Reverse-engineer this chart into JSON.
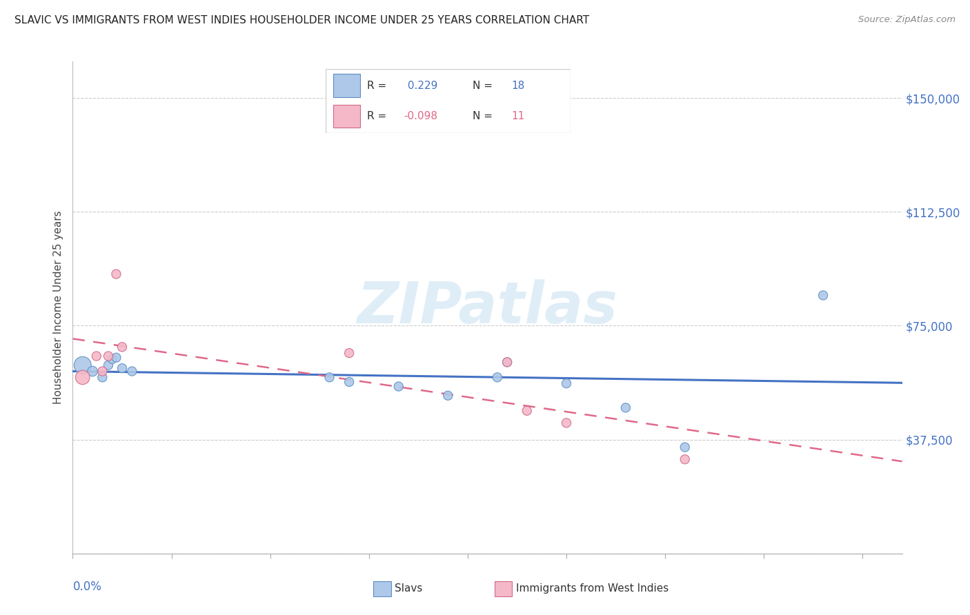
{
  "title": "SLAVIC VS IMMIGRANTS FROM WEST INDIES HOUSEHOLDER INCOME UNDER 25 YEARS CORRELATION CHART",
  "source": "Source: ZipAtlas.com",
  "ylabel": "Householder Income Under 25 years",
  "legend_label1": "Slavs",
  "legend_label2": "Immigrants from West Indies",
  "r1": 0.229,
  "n1": 18,
  "r2": -0.098,
  "n2": 11,
  "ylim": [
    0,
    162000
  ],
  "xlim": [
    0.0,
    0.042
  ],
  "blue_face": "#adc8e8",
  "blue_edge": "#5b8ec4",
  "blue_line": "#4472c4",
  "pink_face": "#f5b8c8",
  "pink_edge": "#d06888",
  "pink_line": "#e06888",
  "grid_color": "#cccccc",
  "title_color": "#222222",
  "right_tick_color": "#4472c4",
  "watermark_color": "#c5dff2",
  "slavs_x": [
    0.0005,
    0.001,
    0.0015,
    0.0018,
    0.002,
    0.0022,
    0.0025,
    0.003,
    0.013,
    0.014,
    0.0165,
    0.019,
    0.0215,
    0.022,
    0.025,
    0.028,
    0.031,
    0.038
  ],
  "slavs_y": [
    62000,
    60000,
    58000,
    62000,
    64000,
    64500,
    61000,
    60000,
    58000,
    56500,
    55000,
    52000,
    58000,
    63000,
    56000,
    48000,
    35000,
    85000
  ],
  "slavs_s": [
    320,
    110,
    90,
    90,
    90,
    90,
    90,
    90,
    90,
    90,
    90,
    90,
    90,
    90,
    90,
    90,
    90,
    90
  ],
  "wi_x": [
    0.0005,
    0.0012,
    0.0015,
    0.0018,
    0.0022,
    0.0025,
    0.014,
    0.022,
    0.023,
    0.025,
    0.031
  ],
  "wi_y": [
    58000,
    65000,
    60000,
    65000,
    92000,
    68000,
    66000,
    63000,
    47000,
    43000,
    31000
  ],
  "wi_s": [
    220,
    90,
    90,
    90,
    90,
    90,
    90,
    90,
    90,
    90,
    90
  ],
  "ytick_vals": [
    0,
    37500,
    75000,
    112500,
    150000
  ],
  "ytick_labels": [
    "",
    "$37,500",
    "$75,000",
    "$112,500",
    "$150,000"
  ],
  "xtick_vals": [
    0.0,
    0.005,
    0.01,
    0.015,
    0.02,
    0.025,
    0.03,
    0.035,
    0.04
  ]
}
